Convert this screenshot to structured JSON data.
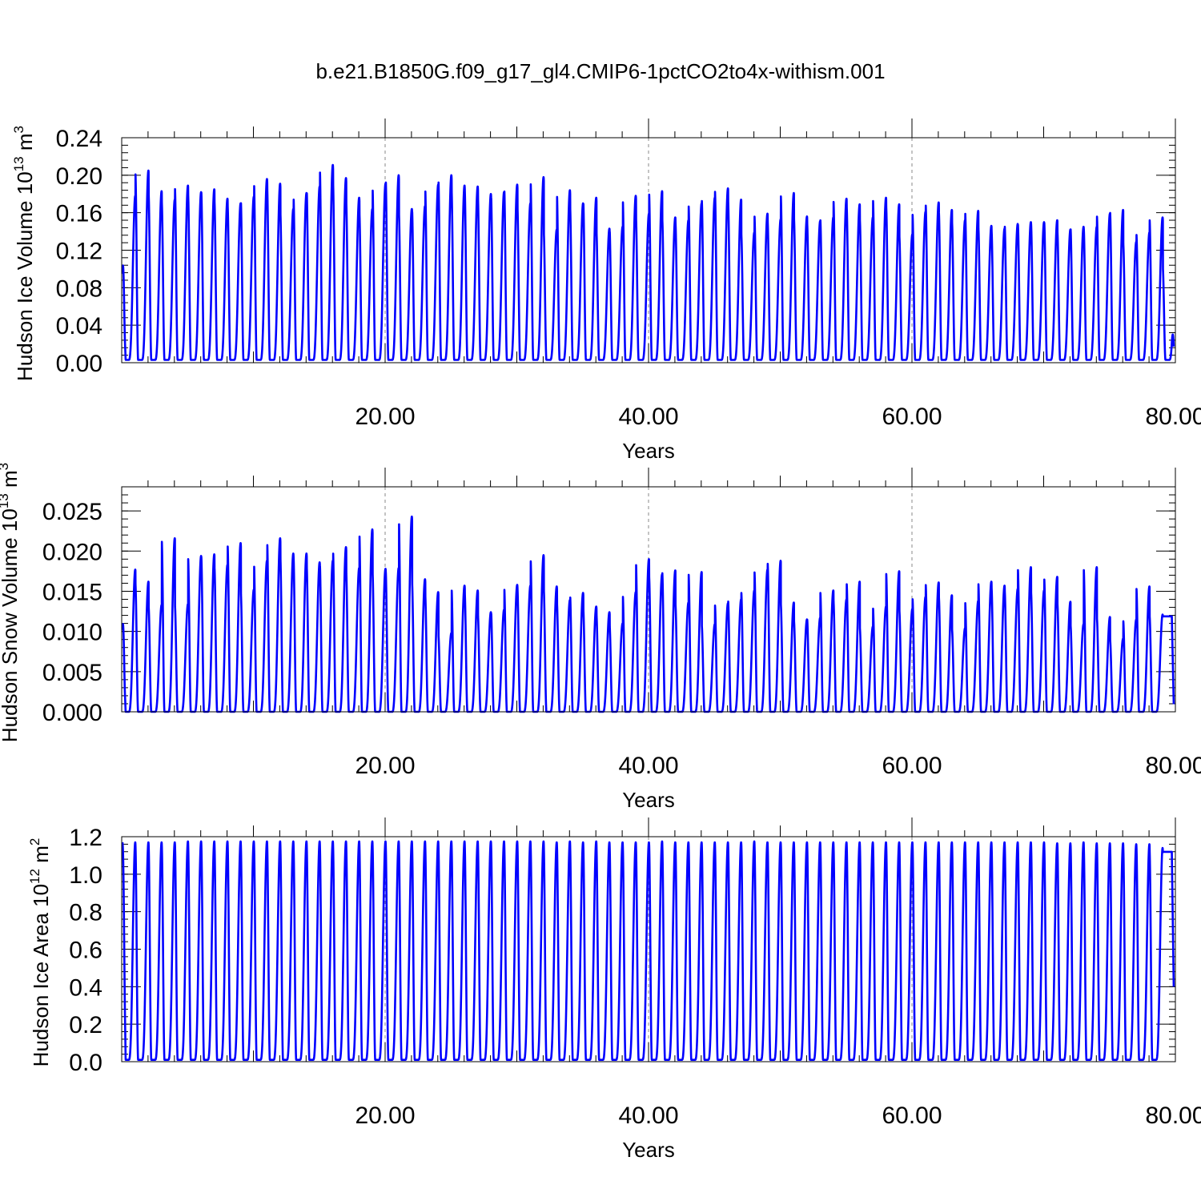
{
  "title": "b.e21.B1850G.f09_g17_gl4.CMIP6-1pctCO2to4x-withism.001",
  "colors": {
    "series": "#0000ff",
    "grid": "#888888",
    "axis": "#000000"
  },
  "chart_data": [
    {
      "type": "line",
      "title": "",
      "xlabel": "Years",
      "ylabel": "Hudson Ice Volume 10",
      "ylabel_exp": "13",
      "ylabel_unit": " m",
      "ylabel_unit_exp": "3",
      "xlim": [
        0,
        80
      ],
      "ylim": [
        0,
        0.24
      ],
      "x_ticks": [
        20,
        40,
        60,
        80
      ],
      "x_tick_labels": [
        "20.00",
        "40.00",
        "60.00",
        "80.00"
      ],
      "y_ticks": [
        0,
        0.04,
        0.08,
        0.12,
        0.16,
        0.2,
        0.24
      ],
      "y_tick_labels": [
        "0.00",
        "0.04",
        "0.08",
        "0.12",
        "0.16",
        "0.20",
        "0.24"
      ],
      "grid": "dashed vertical at 20, 40, 60",
      "series": [
        {
          "start_value": 0.095,
          "trough": 0.003,
          "end_value": 0.015,
          "annual_peaks": [
            0.178,
            0.205,
            0.183,
            0.174,
            0.189,
            0.182,
            0.185,
            0.175,
            0.17,
            0.177,
            0.196,
            0.191,
            0.164,
            0.181,
            0.188,
            0.211,
            0.197,
            0.176,
            0.164,
            0.191,
            0.2,
            0.164,
            0.167,
            0.19,
            0.2,
            0.189,
            0.188,
            0.18,
            0.182,
            0.19,
            0.17,
            0.198,
            0.142,
            0.184,
            0.17,
            0.176,
            0.143,
            0.145,
            0.178,
            0.159,
            0.183,
            0.155,
            0.152,
            0.17,
            0.176,
            0.186,
            0.174,
            0.139,
            0.159,
            0.153,
            0.181,
            0.156,
            0.151,
            0.155,
            0.175,
            0.169,
            0.155,
            0.176,
            0.169,
            0.137,
            0.161,
            0.171,
            0.163,
            0.152,
            0.162,
            0.146,
            0.143,
            0.148,
            0.15,
            0.15,
            0.152,
            0.142,
            0.145,
            0.145,
            0.159,
            0.163,
            0.129,
            0.139,
            0.155,
            0.104
          ]
        }
      ]
    },
    {
      "type": "line",
      "title": "",
      "xlabel": "Years",
      "ylabel": "Hudson Snow Volume 10",
      "ylabel_exp": "13",
      "ylabel_unit": " m",
      "ylabel_unit_exp": "3",
      "xlim": [
        0,
        80
      ],
      "ylim": [
        0,
        0.028
      ],
      "x_ticks": [
        20,
        40,
        60,
        80
      ],
      "x_tick_labels": [
        "20.00",
        "40.00",
        "60.00",
        "80.00"
      ],
      "y_ticks": [
        0,
        0.005,
        0.01,
        0.015,
        0.02,
        0.025
      ],
      "y_tick_labels": [
        "0.000",
        "0.005",
        "0.010",
        "0.015",
        "0.020",
        "0.025"
      ],
      "grid": "dashed vertical at 20, 40, 60",
      "series": [
        {
          "start_value": 0.0102,
          "trough": 0.0,
          "end_value": 0.0005,
          "annual_peaks": [
            0.0177,
            0.0162,
            0.0133,
            0.0216,
            0.0134,
            0.0194,
            0.0196,
            0.0183,
            0.021,
            0.0152,
            0.0188,
            0.0216,
            0.0197,
            0.0197,
            0.0186,
            0.0188,
            0.0205,
            0.0179,
            0.0227,
            0.0178,
            0.0179,
            0.0243,
            0.0165,
            0.0149,
            0.0098,
            0.0157,
            0.0151,
            0.0124,
            0.0127,
            0.0158,
            0.0157,
            0.0195,
            0.0156,
            0.0139,
            0.0148,
            0.0131,
            0.0124,
            0.011,
            0.0149,
            0.019,
            0.0171,
            0.0176,
            0.0136,
            0.0174,
            0.0109,
            0.0135,
            0.014,
            0.0151,
            0.0177,
            0.0188,
            0.0136,
            0.0115,
            0.0117,
            0.0151,
            0.014,
            0.0162,
            0.0106,
            0.0131,
            0.0175,
            0.0128,
            0.0143,
            0.0161,
            0.0145,
            0.0104,
            0.0138,
            0.0162,
            0.0157,
            0.0153,
            0.018,
            0.0151,
            0.0168,
            0.0137,
            0.0109,
            0.018,
            0.0118,
            0.0091,
            0.0115,
            0.0156,
            0.0121
          ]
        }
      ]
    },
    {
      "type": "line",
      "title": "",
      "xlabel": "Years",
      "ylabel": "Hudson Ice Area 10",
      "ylabel_exp": "12",
      "ylabel_unit": " m",
      "ylabel_unit_exp": "2",
      "xlim": [
        0,
        80
      ],
      "ylim": [
        0,
        1.2
      ],
      "x_ticks": [
        20,
        40,
        60,
        80
      ],
      "x_tick_labels": [
        "20.00",
        "40.00",
        "60.00",
        "80.00"
      ],
      "y_ticks": [
        0,
        0.2,
        0.4,
        0.6,
        0.8,
        1.0,
        1.2
      ],
      "y_tick_labels": [
        "0.0",
        "0.2",
        "0.4",
        "0.6",
        "0.8",
        "1.0",
        "1.2"
      ],
      "grid": "dashed vertical at 20, 40, 60",
      "series": [
        {
          "start_value": 1.17,
          "trough": 0.01,
          "end_value": 0.37,
          "annual_peaks": [
            1.17,
            1.17,
            1.17,
            1.17,
            1.175,
            1.175,
            1.175,
            1.175,
            1.175,
            1.175,
            1.175,
            1.175,
            1.175,
            1.175,
            1.175,
            1.175,
            1.175,
            1.175,
            1.175,
            1.175,
            1.175,
            1.175,
            1.175,
            1.175,
            1.175,
            1.175,
            1.175,
            1.175,
            1.175,
            1.175,
            1.175,
            1.175,
            1.17,
            1.175,
            1.17,
            1.175,
            1.17,
            1.17,
            1.17,
            1.17,
            1.175,
            1.17,
            1.17,
            1.17,
            1.17,
            1.17,
            1.17,
            1.175,
            1.17,
            1.17,
            1.17,
            1.17,
            1.17,
            1.17,
            1.17,
            1.17,
            1.17,
            1.17,
            1.17,
            1.17,
            1.17,
            1.17,
            1.17,
            1.17,
            1.17,
            1.17,
            1.17,
            1.17,
            1.17,
            1.17,
            1.165,
            1.165,
            1.17,
            1.165,
            1.165,
            1.165,
            1.16,
            1.16,
            1.14
          ]
        }
      ]
    }
  ]
}
